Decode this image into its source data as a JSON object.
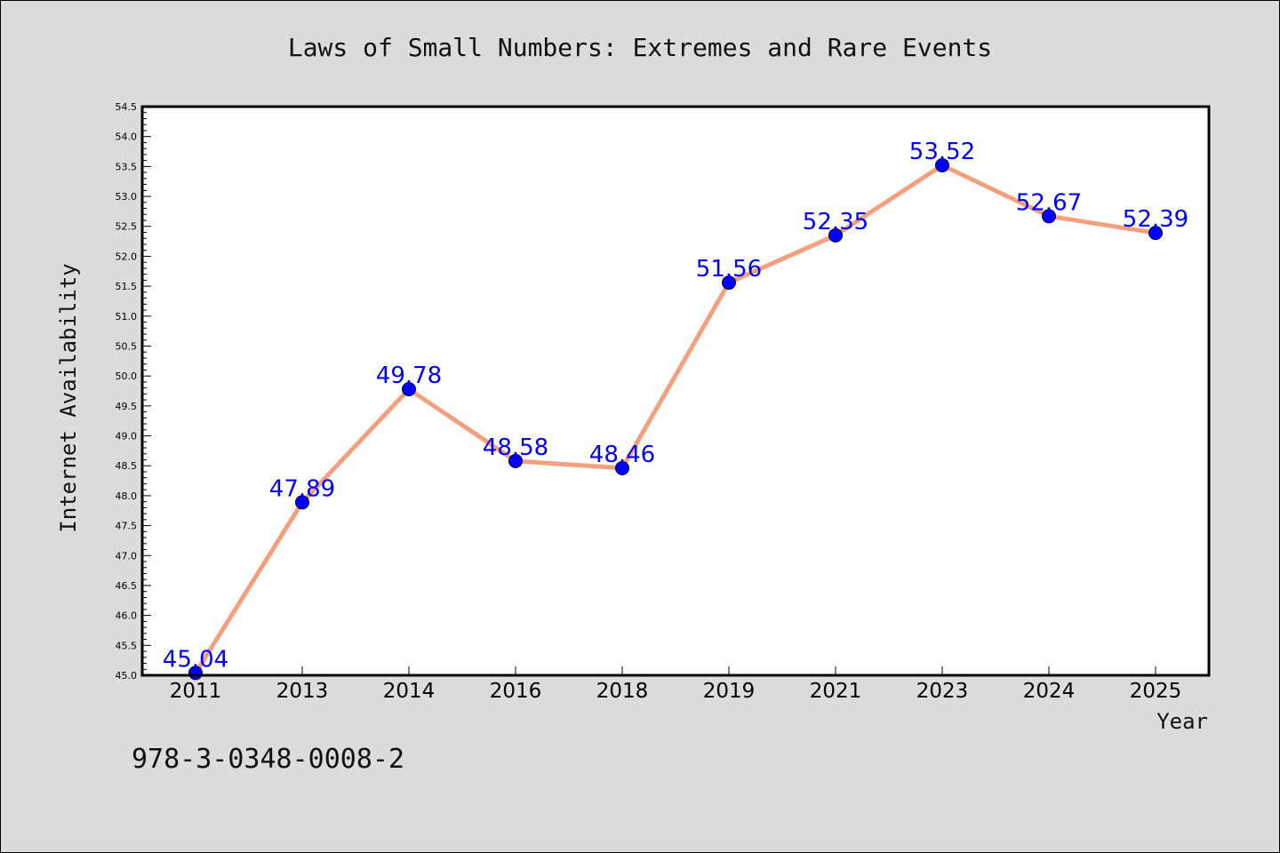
{
  "chart_data": {
    "type": "line",
    "title": "Laws of Small Numbers: Extremes and Rare Events",
    "xlabel": "Year",
    "ylabel": "Internet Availability",
    "categories": [
      "2011",
      "2013",
      "2014",
      "2016",
      "2018",
      "2019",
      "2021",
      "2023",
      "2024",
      "2025"
    ],
    "series": [
      {
        "values": [
          45.04,
          47.89,
          49.78,
          48.58,
          48.46,
          51.56,
          52.35,
          53.52,
          52.67,
          52.39
        ]
      }
    ],
    "data_labels": [
      "45.04",
      "47.89",
      "49.78",
      "48.58",
      "48.46",
      "51.56",
      "52.35",
      "53.52",
      "52.67",
      "52.39"
    ],
    "ylim": [
      45.0,
      54.5
    ],
    "ytick_step": 0.5,
    "grid": false,
    "legend": "none"
  },
  "footer": {
    "isbn": "978-3-0348-0008-2"
  },
  "colors": {
    "background": "#dcdcdc",
    "plot_background": "#ffffff",
    "line": "#f4a07e",
    "marker": "#0000ff",
    "data_label": "#0000ff"
  }
}
